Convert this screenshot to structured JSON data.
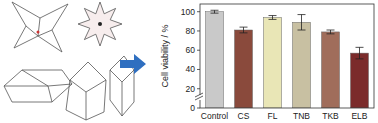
{
  "chart_data": {
    "type": "bar",
    "y_label": "Cell viability / %",
    "categories": [
      "Control",
      "CS",
      "FL",
      "TNB",
      "TKB",
      "ELB"
    ],
    "values": [
      100,
      81,
      94,
      89,
      79,
      57
    ],
    "errors": [
      1.5,
      3,
      2,
      8,
      2,
      6
    ],
    "colors": [
      "#c9c9c9",
      "#8a4a3c",
      "#e9e6b6",
      "#c8c0a2",
      "#a06d5b",
      "#7b2b2b"
    ],
    "ylim": [
      0,
      108
    ],
    "yticks": [
      0,
      20,
      40,
      60,
      80,
      100
    ],
    "grid": false
  }
}
